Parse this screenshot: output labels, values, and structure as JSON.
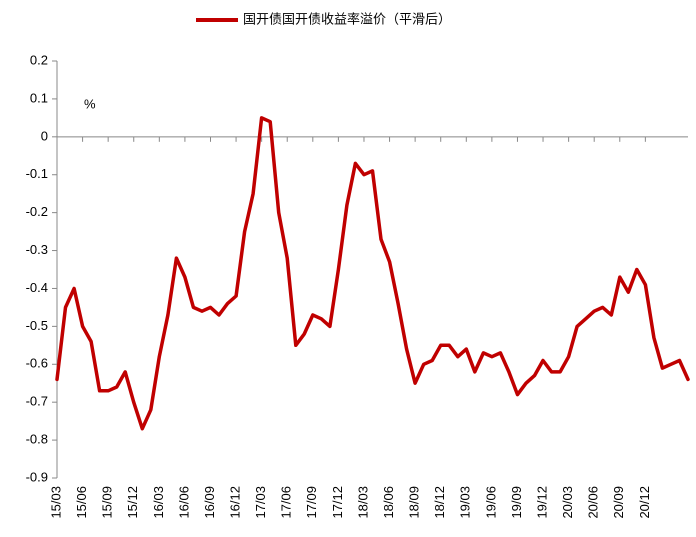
{
  "chart_data": {
    "type": "line",
    "annotation": "%",
    "categories": [
      "15/03",
      null,
      null,
      "15/06",
      null,
      null,
      "15/09",
      null,
      null,
      "15/12",
      null,
      null,
      "16/03",
      null,
      null,
      "16/06",
      null,
      null,
      "16/09",
      null,
      null,
      "16/12",
      null,
      null,
      "17/03",
      null,
      null,
      "17/06",
      null,
      null,
      "17/09",
      null,
      null,
      "17/12",
      null,
      null,
      "18/03",
      null,
      null,
      "18/06",
      null,
      null,
      "18/09",
      null,
      null,
      "18/12",
      null,
      null,
      "19/03",
      null,
      null,
      "19/06",
      null,
      null,
      "19/09",
      null,
      null,
      "19/12",
      null,
      null,
      "20/03",
      null,
      null,
      "20/06",
      null,
      null,
      "20/09",
      null,
      null,
      "20/12",
      null,
      null,
      null,
      null,
      null
    ],
    "series": [
      {
        "name": "国开债国开债收益率溢价（平滑后）",
        "color": "#c00000",
        "values": [
          -0.64,
          -0.45,
          -0.4,
          -0.5,
          -0.54,
          -0.67,
          -0.67,
          -0.66,
          -0.62,
          -0.7,
          -0.77,
          -0.72,
          -0.58,
          -0.47,
          -0.32,
          -0.37,
          -0.45,
          -0.46,
          -0.45,
          -0.47,
          -0.44,
          -0.42,
          -0.25,
          -0.15,
          0.05,
          0.04,
          -0.2,
          -0.32,
          -0.55,
          -0.52,
          -0.47,
          -0.48,
          -0.5,
          -0.35,
          -0.18,
          -0.07,
          -0.1,
          -0.09,
          -0.27,
          -0.33,
          -0.44,
          -0.56,
          -0.65,
          -0.6,
          -0.59,
          -0.55,
          -0.55,
          -0.58,
          -0.56,
          -0.62,
          -0.57,
          -0.58,
          -0.57,
          -0.62,
          -0.68,
          -0.65,
          -0.63,
          -0.59,
          -0.62,
          -0.62,
          -0.58,
          -0.5,
          -0.48,
          -0.46,
          -0.45,
          -0.47,
          -0.37,
          -0.41,
          -0.35,
          -0.39,
          -0.53,
          -0.61,
          -0.6,
          -0.59,
          -0.64
        ]
      }
    ],
    "ylim": [
      -0.9,
      0.2
    ],
    "yticks": [
      -0.9,
      -0.8,
      -0.7,
      -0.6,
      -0.5,
      -0.4,
      -0.3,
      -0.2,
      -0.1,
      0,
      0.1,
      0.2
    ],
    "legend": "top"
  }
}
